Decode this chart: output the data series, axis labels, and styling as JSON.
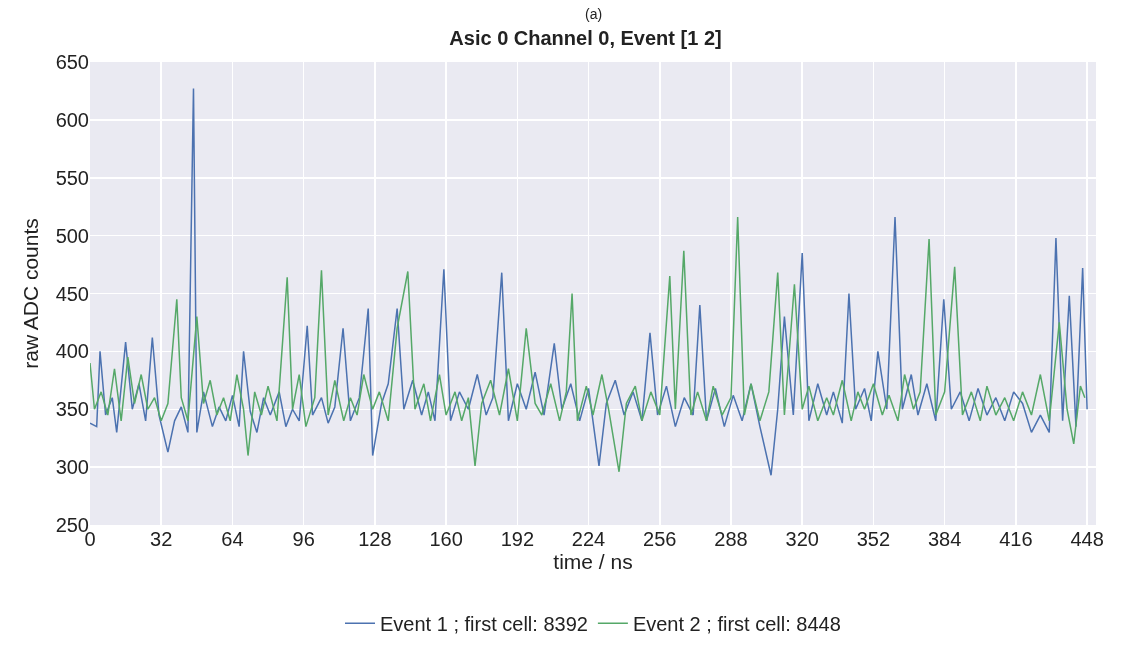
{
  "chart_data": {
    "type": "line",
    "title": "Asic 0 Channel 0, Event [1 2]",
    "xlabel": "time / ns",
    "ylabel": "raw ADC counts",
    "annotations": [
      "(a)"
    ],
    "xlim": [
      0,
      452
    ],
    "ylim": [
      250,
      650
    ],
    "xticks": [
      0,
      32,
      64,
      96,
      128,
      160,
      192,
      224,
      256,
      288,
      320,
      352,
      384,
      416,
      448
    ],
    "yticks": [
      250,
      300,
      350,
      400,
      450,
      500,
      550,
      600,
      650
    ],
    "grid": true,
    "legend": "bottom",
    "marker": "none",
    "line_style": "solid",
    "series": [
      {
        "name": "Event 1 ; first cell: 8392",
        "color": "#4c72b0",
        "x": [
          0,
          3,
          4.5,
          7,
          10,
          12,
          16,
          19,
          22,
          25,
          28,
          31,
          35,
          38,
          41,
          44,
          46.5,
          48,
          51,
          55,
          58,
          61,
          64,
          67,
          69,
          72,
          75,
          78,
          81,
          85,
          88,
          91,
          94,
          97.6,
          100,
          104,
          107,
          110,
          113.7,
          117,
          121,
          125,
          127,
          131,
          134,
          138,
          141,
          145,
          149,
          152,
          155,
          159,
          162,
          166,
          170,
          174,
          178,
          181,
          185,
          188,
          192,
          196,
          200,
          204,
          208.6,
          212,
          216,
          220,
          224,
          228.7,
          232,
          236,
          240,
          244,
          248,
          251.6,
          255,
          259,
          263,
          267,
          271,
          274,
          277,
          281,
          285,
          289,
          293,
          297,
          301,
          306,
          309,
          312,
          316,
          320,
          323,
          327,
          331,
          334,
          338,
          341,
          344,
          348,
          351,
          354,
          358,
          361.7,
          365,
          369,
          372,
          376,
          380,
          383.6,
          387,
          391,
          395,
          399,
          403,
          407,
          411,
          415,
          419,
          423,
          427,
          431,
          434,
          437,
          440,
          443,
          446,
          448
        ],
        "values": [
          338,
          335,
          400,
          345,
          360,
          330,
          408,
          350,
          372,
          340,
          412,
          345,
          313,
          340,
          352,
          330,
          627,
          330,
          365,
          335,
          352,
          340,
          362,
          335,
          400,
          348,
          330,
          360,
          345,
          365,
          335,
          350,
          340,
          422,
          345,
          360,
          338,
          352,
          420,
          340,
          360,
          437,
          310,
          355,
          372,
          437,
          350,
          375,
          345,
          365,
          340,
          471,
          340,
          365,
          350,
          380,
          345,
          360,
          468,
          340,
          372,
          350,
          382,
          345,
          407,
          350,
          372,
          340,
          368,
          301,
          355,
          375,
          345,
          365,
          340,
          416,
          345,
          370,
          335,
          360,
          345,
          440,
          340,
          368,
          335,
          362,
          340,
          372,
          335,
          293,
          350,
          430,
          345,
          485,
          340,
          372,
          345,
          365,
          338,
          450,
          350,
          368,
          340,
          400,
          350,
          516,
          350,
          380,
          345,
          372,
          340,
          445,
          350,
          365,
          340,
          368,
          345,
          360,
          340,
          365,
          355,
          330,
          345,
          330,
          498,
          340,
          448,
          335,
          472,
          350
        ]
      },
      {
        "name": "Event 2 ; first cell: 8448",
        "color": "#55a868",
        "x": [
          0,
          2,
          5,
          8,
          11,
          14,
          17,
          20,
          23,
          26,
          29,
          32,
          35,
          39,
          41,
          44,
          48,
          51,
          54,
          57,
          60,
          63,
          66,
          69,
          71,
          74,
          77,
          80,
          84,
          88.6,
          91,
          94,
          97,
          101,
          104,
          107,
          110,
          114,
          117,
          120,
          123,
          127,
          130,
          134,
          138,
          142.8,
          146,
          150,
          153,
          157,
          160,
          164,
          167,
          170,
          173,
          176,
          180,
          184,
          188,
          192,
          196,
          200,
          203,
          207,
          211,
          214,
          216.6,
          219,
          223,
          226,
          230,
          233,
          237.7,
          241,
          245,
          248,
          252,
          256,
          260.5,
          263,
          266.8,
          270,
          273,
          277,
          280,
          284,
          288,
          291,
          294,
          297,
          301,
          305,
          309,
          312,
          316.5,
          320,
          323,
          327,
          331,
          334,
          338,
          342,
          345,
          348,
          352,
          356,
          359,
          363,
          366,
          370,
          373,
          377,
          380,
          384,
          388.5,
          392,
          396,
          400,
          403,
          407,
          411,
          415,
          419,
          423,
          427,
          431,
          435.5,
          439,
          442,
          445,
          447
        ],
        "values": [
          390,
          350,
          365,
          345,
          385,
          340,
          395,
          355,
          380,
          350,
          360,
          340,
          355,
          445,
          360,
          340,
          430,
          355,
          375,
          345,
          360,
          340,
          380,
          350,
          310,
          365,
          345,
          370,
          340,
          464,
          350,
          380,
          335,
          360,
          470,
          345,
          375,
          340,
          360,
          345,
          380,
          350,
          365,
          340,
          420,
          469,
          350,
          372,
          340,
          380,
          345,
          365,
          340,
          360,
          301,
          355,
          375,
          345,
          385,
          340,
          420,
          355,
          345,
          372,
          340,
          365,
          450,
          340,
          370,
          345,
          380,
          350,
          296,
          355,
          370,
          340,
          365,
          345,
          465,
          350,
          487,
          345,
          365,
          340,
          370,
          345,
          360,
          516,
          345,
          372,
          340,
          365,
          468,
          345,
          458,
          350,
          370,
          340,
          360,
          345,
          375,
          340,
          365,
          350,
          372,
          345,
          362,
          340,
          380,
          350,
          365,
          497,
          345,
          365,
          473,
          345,
          365,
          340,
          370,
          345,
          360,
          340,
          365,
          345,
          380,
          340,
          425,
          350,
          320,
          370,
          360
        ]
      }
    ]
  }
}
